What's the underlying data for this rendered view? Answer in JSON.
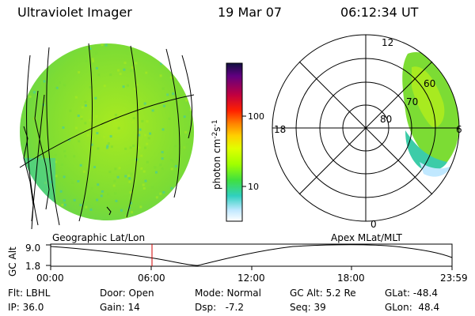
{
  "header": {
    "title": "Ultraviolet Imager",
    "date": "19 Mar 07",
    "time": "06:12:34 UT"
  },
  "colorbar": {
    "label": "photon cm",
    "label_sup1": "-2",
    "label_mid": "s",
    "label_sup2": "-1",
    "ticks": [
      "100",
      "10"
    ],
    "colors": [
      "#101040",
      "#600080",
      "#c00040",
      "#ff2000",
      "#ff8000",
      "#ffd000",
      "#e0ff00",
      "#a0ff00",
      "#40e040",
      "#30d0c0",
      "#c0e8ff",
      "#ffffff"
    ]
  },
  "polar": {
    "labels": {
      "top": "12",
      "bottom": "0",
      "left": "18",
      "right": "6"
    },
    "rings": [
      "80",
      "70",
      "60"
    ]
  },
  "timeline": {
    "axis_title": "GC Alt",
    "y_labels": [
      "9.0",
      "1.8"
    ],
    "left_caption": "Geographic Lat/Lon",
    "right_caption": "Apex MLat/MLT",
    "x_labels": [
      "00:00",
      "06:00",
      "12:00",
      "18:00",
      "23:59"
    ]
  },
  "status": {
    "row1": [
      "Flt: LBHL",
      "Door: Open",
      "Mode: Normal",
      "GC Alt: 5.2 Re",
      "GLat: -48.4"
    ],
    "row2": [
      "IP: 36.0",
      "Gain: 14",
      "Dsp:   -7.2",
      "Seq: 39",
      "GLon:  48.4"
    ]
  },
  "colors": {
    "disk_main": "#7cdc34",
    "disk_alt": "#a8ea20",
    "disk_cyan": "#3ccca8",
    "marker": "#d00000"
  }
}
